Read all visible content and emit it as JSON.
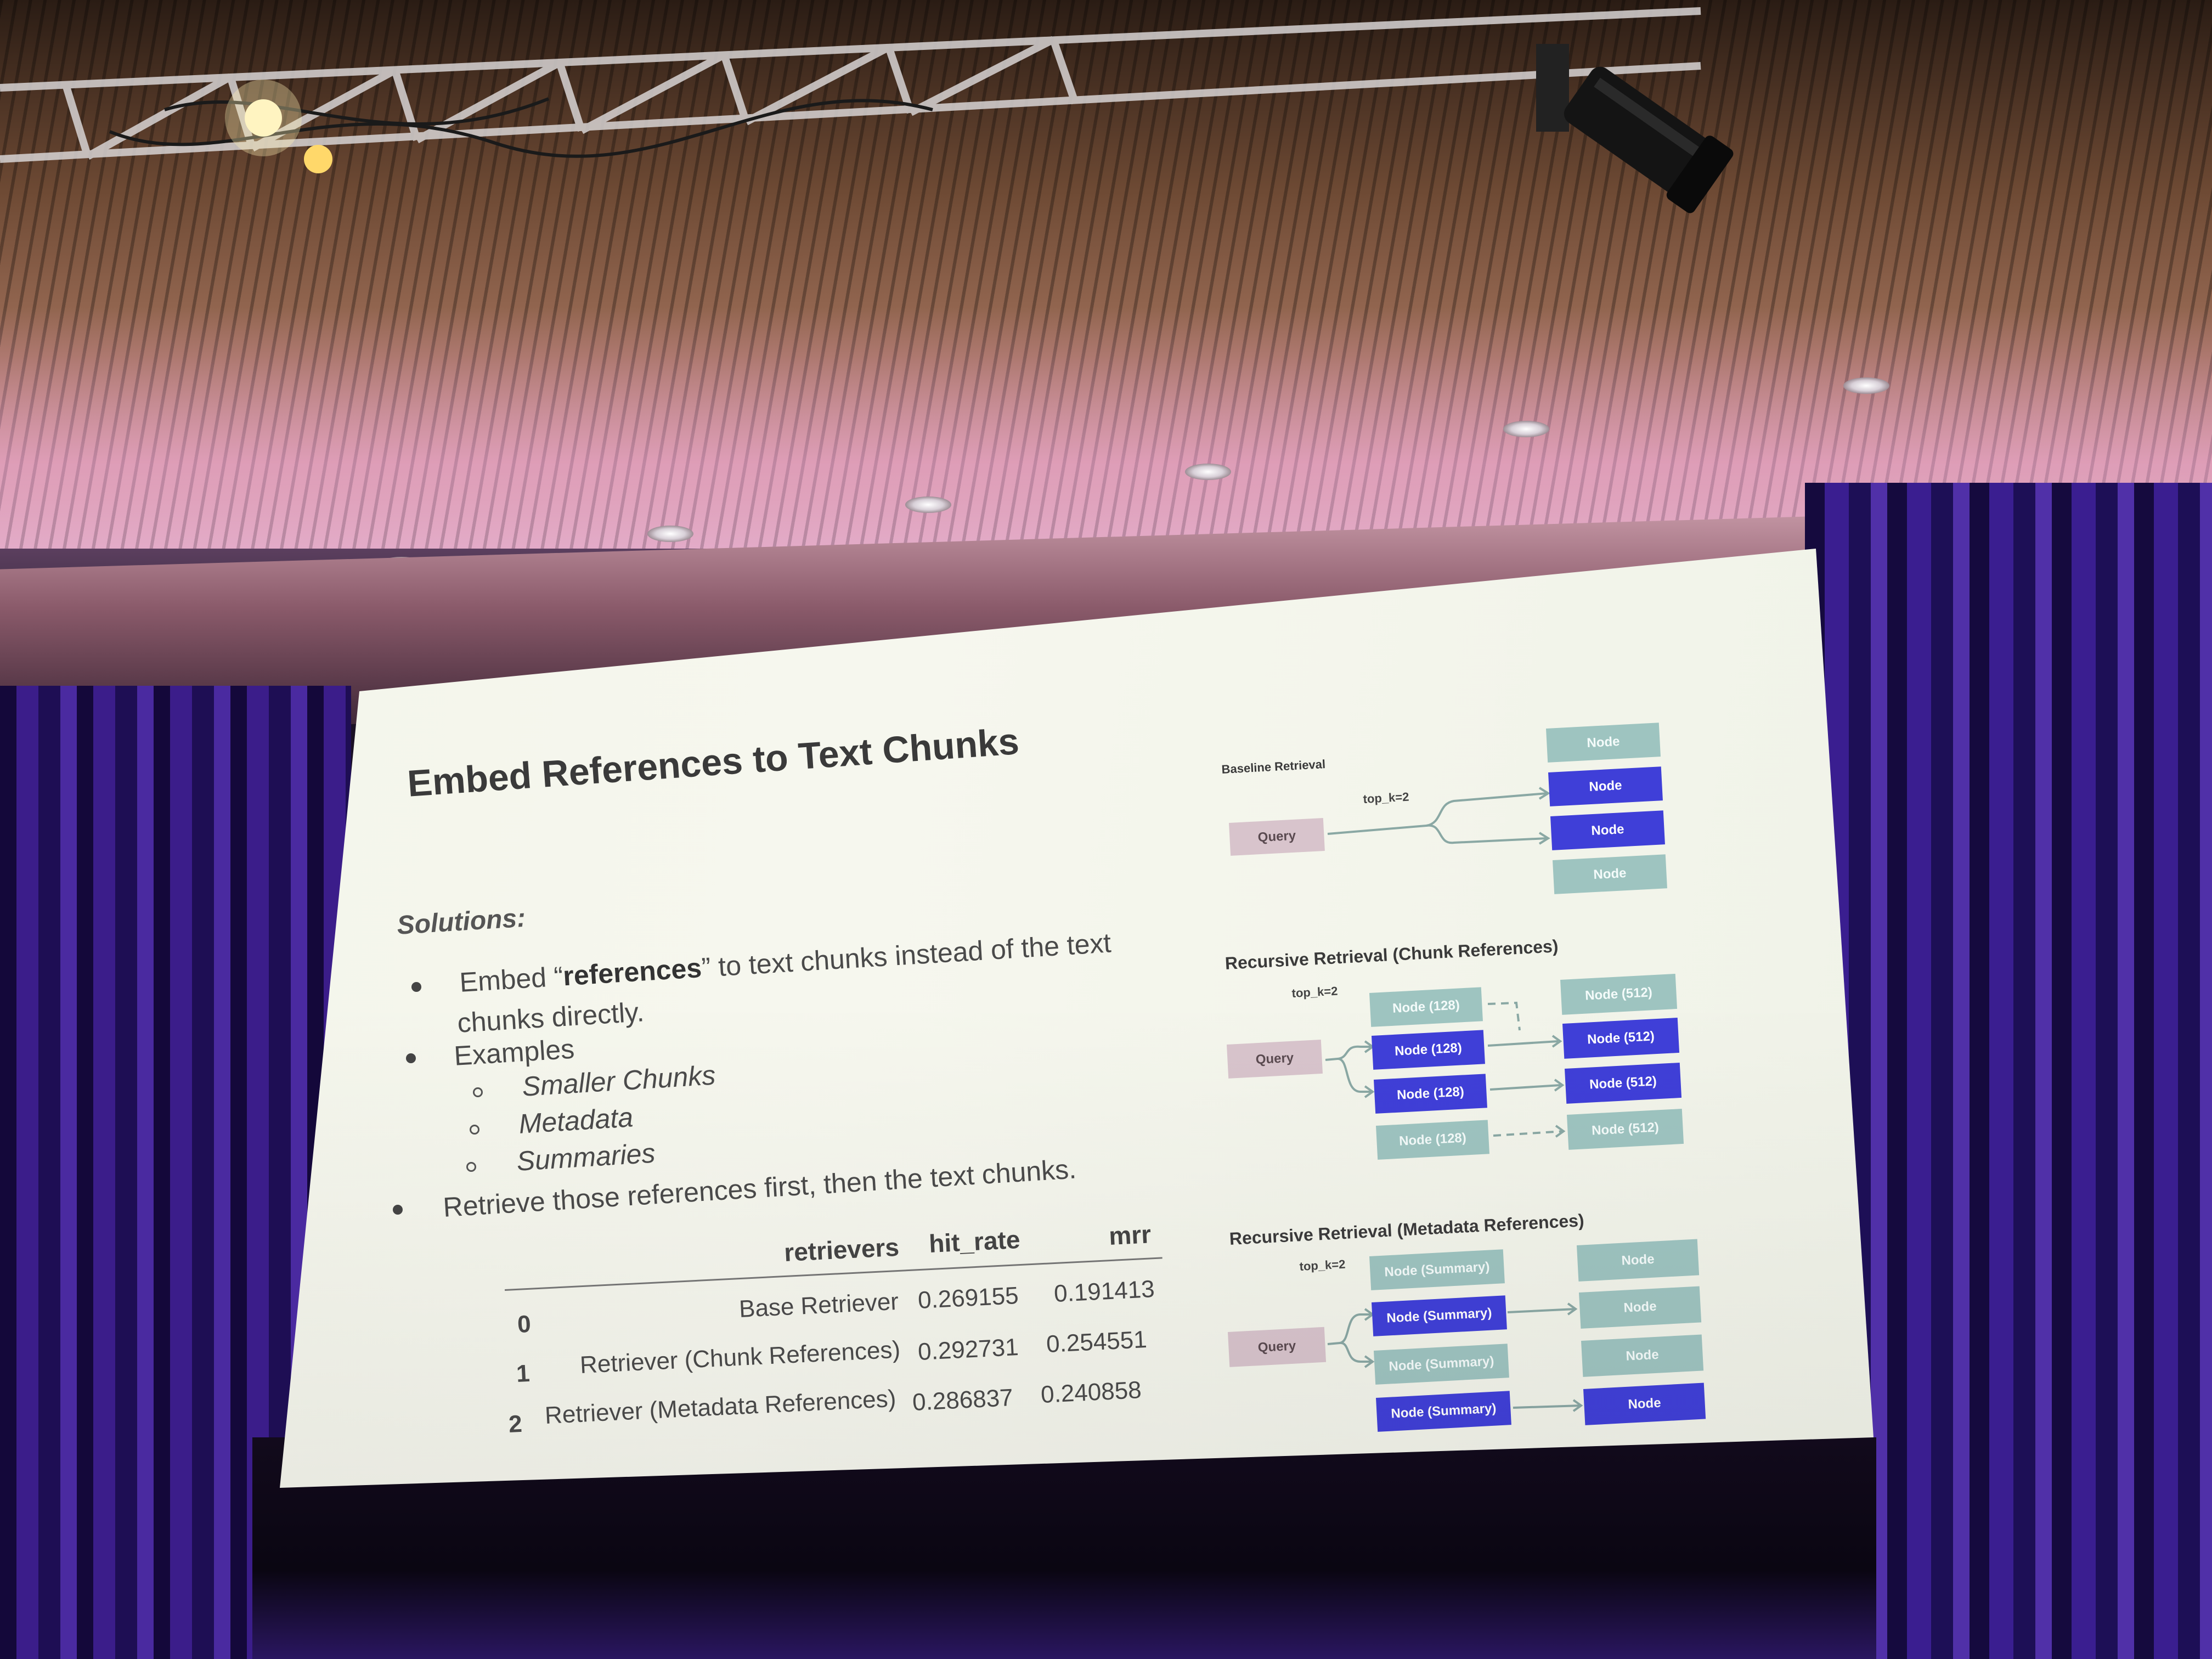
{
  "slide": {
    "title": "Embed References to Text Chunks",
    "solutions_label": "Solutions:",
    "bullets": {
      "b1_pre": "Embed “",
      "b1_bold": "references",
      "b1_post": "” to text chunks instead of the text",
      "b1_line2": "chunks directly.",
      "b2": "Examples",
      "b2_sub": [
        "Smaller Chunks",
        "Metadata",
        "Summaries"
      ],
      "b3": "Retrieve those references first, then the text chunks."
    },
    "table": {
      "headers": [
        "retrievers",
        "hit_rate",
        "mrr"
      ],
      "rows": [
        {
          "index": "0",
          "retriever": "Base Retriever",
          "hit_rate": "0.269155",
          "mrr": "0.191413"
        },
        {
          "index": "1",
          "retriever": "Retriever (Chunk References)",
          "hit_rate": "0.292731",
          "mrr": "0.254551"
        },
        {
          "index": "2",
          "retriever": "Retriever (Metadata References)",
          "hit_rate": "0.286837",
          "mrr": "0.240858"
        }
      ]
    },
    "diagrams": {
      "baseline": {
        "title": "Baseline Retrieval",
        "topk": "top_k=2",
        "query": "Query",
        "nodes": [
          "Node",
          "Node",
          "Node",
          "Node"
        ]
      },
      "chunk_refs": {
        "title": "Recursive Retrieval (Chunk References)",
        "topk": "top_k=2",
        "query": "Query",
        "left_nodes": [
          "Node (128)",
          "Node (128)",
          "Node (128)",
          "Node (128)"
        ],
        "right_nodes": [
          "Node (512)",
          "Node (512)",
          "Node (512)",
          "Node (512)"
        ]
      },
      "metadata_refs": {
        "title": "Recursive Retrieval (Metadata References)",
        "topk": "top_k=2",
        "query": "Query",
        "left_nodes": [
          "Node (Summary)",
          "Node (Summary)",
          "Node (Summary)",
          "Node (Summary)"
        ],
        "right_nodes": [
          "Node",
          "Node",
          "Node",
          "Node"
        ]
      }
    },
    "colors": {
      "node_plain": "#9ec4c0",
      "node_highlight": "#3f3fd8",
      "query": "#d8c4cc"
    }
  }
}
